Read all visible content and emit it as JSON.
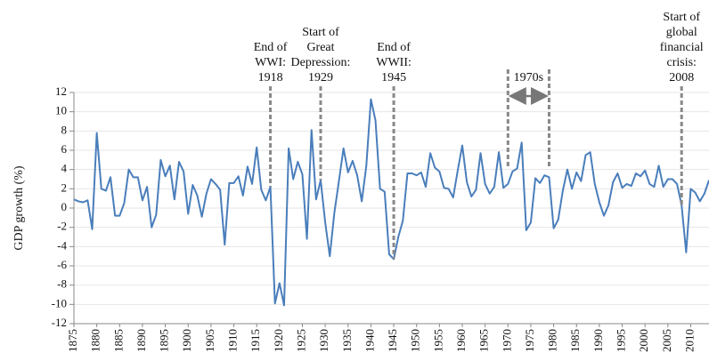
{
  "chart_data": {
    "type": "line",
    "ylabel": "GDP growth (%)",
    "x": [
      1875,
      1876,
      1877,
      1878,
      1879,
      1880,
      1881,
      1882,
      1883,
      1884,
      1885,
      1886,
      1887,
      1888,
      1889,
      1890,
      1891,
      1892,
      1893,
      1894,
      1895,
      1896,
      1897,
      1898,
      1899,
      1900,
      1901,
      1902,
      1903,
      1904,
      1905,
      1906,
      1907,
      1908,
      1909,
      1910,
      1911,
      1912,
      1913,
      1914,
      1915,
      1916,
      1917,
      1918,
      1919,
      1920,
      1921,
      1922,
      1923,
      1924,
      1925,
      1926,
      1927,
      1928,
      1929,
      1930,
      1931,
      1932,
      1933,
      1934,
      1935,
      1936,
      1937,
      1938,
      1939,
      1940,
      1941,
      1942,
      1943,
      1944,
      1945,
      1946,
      1947,
      1948,
      1949,
      1950,
      1951,
      1952,
      1953,
      1954,
      1955,
      1956,
      1957,
      1958,
      1959,
      1960,
      1961,
      1962,
      1963,
      1964,
      1965,
      1966,
      1967,
      1968,
      1969,
      1970,
      1971,
      1972,
      1973,
      1974,
      1975,
      1976,
      1977,
      1978,
      1979,
      1980,
      1981,
      1982,
      1983,
      1984,
      1985,
      1986,
      1987,
      1988,
      1989,
      1990,
      1991,
      1992,
      1993,
      1994,
      1995,
      1996,
      1997,
      1998,
      1999,
      2000,
      2001,
      2002,
      2003,
      2004,
      2005,
      2006,
      2007,
      2008,
      2009,
      2010,
      2011,
      2012,
      2013,
      2014
    ],
    "series": [
      {
        "color": "#4a7ebb",
        "values": [
          0.9,
          0.7,
          0.6,
          0.8,
          -2.2,
          7.8,
          2.0,
          1.8,
          3.2,
          -0.8,
          -0.8,
          0.5,
          4.0,
          3.2,
          3.2,
          0.8,
          2.2,
          -2.0,
          -0.7,
          5.0,
          3.3,
          4.4,
          0.9,
          4.8,
          3.8,
          -0.6,
          2.4,
          1.3,
          -0.9,
          1.5,
          3.0,
          2.5,
          1.9,
          -3.8,
          2.6,
          2.6,
          3.3,
          1.3,
          4.3,
          2.5,
          6.3,
          1.9,
          0.8,
          2.2,
          -9.9,
          -7.8,
          -10.1,
          6.2,
          3.0,
          4.8,
          3.5,
          -3.2,
          8.1,
          0.9,
          2.9,
          -1.5,
          -5.0,
          -0.5,
          2.8,
          6.2,
          3.7,
          4.9,
          3.4,
          0.7,
          4.4,
          11.3,
          9.1,
          2.0,
          1.7,
          -4.8,
          -5.3,
          -3.0,
          -1.3,
          3.6,
          3.6,
          3.4,
          3.7,
          2.2,
          5.7,
          4.2,
          3.8,
          2.1,
          2.0,
          1.1,
          3.9,
          6.5,
          2.7,
          1.2,
          1.9,
          5.7,
          2.5,
          1.5,
          2.2,
          5.8,
          2.1,
          2.5,
          3.8,
          4.1,
          6.8,
          -2.3,
          -1.5,
          3.1,
          2.6,
          3.4,
          3.2,
          -2.1,
          -1.2,
          1.8,
          4.0,
          2.0,
          3.7,
          2.8,
          5.5,
          5.8,
          2.5,
          0.6,
          -0.8,
          0.3,
          2.7,
          3.6,
          2.1,
          2.5,
          2.3,
          3.6,
          3.3,
          3.9,
          2.5,
          2.2,
          4.4,
          2.2,
          3.0,
          3.0,
          2.5,
          0.3,
          -4.6,
          2.0,
          1.6,
          0.7,
          1.5,
          2.9
        ]
      }
    ],
    "xlim": [
      1875,
      2014
    ],
    "xticks": [
      1875,
      1880,
      1885,
      1890,
      1895,
      1900,
      1905,
      1910,
      1915,
      1920,
      1925,
      1930,
      1935,
      1940,
      1945,
      1950,
      1955,
      1960,
      1965,
      1970,
      1975,
      1980,
      1985,
      1990,
      1995,
      2000,
      2005,
      2010
    ],
    "ylim": [
      -12,
      12
    ],
    "yticks": [
      -12,
      -10,
      -8,
      -6,
      -4,
      -2,
      0,
      2,
      4,
      6,
      8,
      10,
      12
    ],
    "grid": true,
    "annotations": [
      {
        "lines": [
          "End of",
          "WWI:",
          "1918"
        ],
        "x": 1918
      },
      {
        "lines": [
          "Start of",
          "Great",
          "Depression:",
          "1929"
        ],
        "x": 1929
      },
      {
        "lines": [
          "End of",
          "WWII:",
          "1945"
        ],
        "x": 1945
      },
      {
        "lines": [
          "Start of",
          "global",
          "financial",
          "crisis:",
          "2008"
        ],
        "x": 2008
      }
    ],
    "ranges": [
      {
        "label": "1970s",
        "x": [
          1970,
          1979
        ]
      }
    ]
  }
}
